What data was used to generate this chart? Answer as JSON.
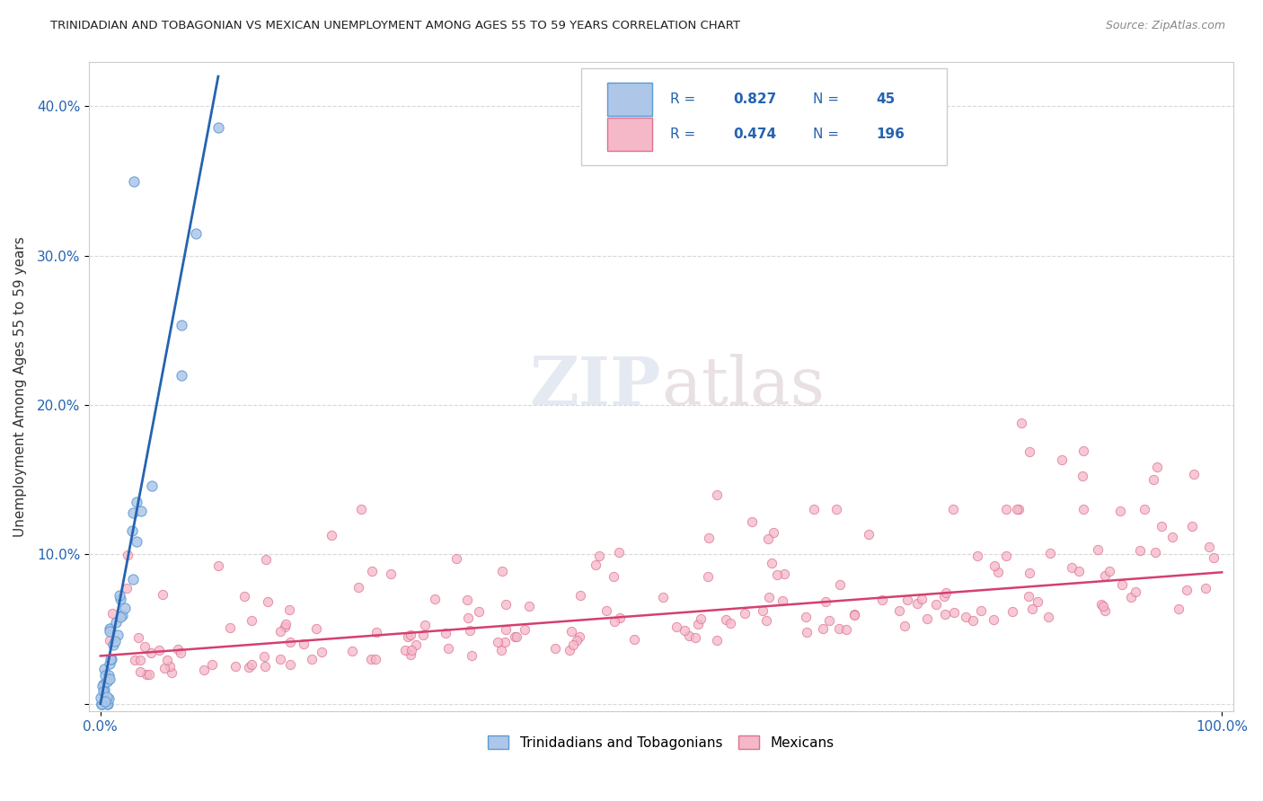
{
  "title": "TRINIDADIAN AND TOBAGONIAN VS MEXICAN UNEMPLOYMENT AMONG AGES 55 TO 59 YEARS CORRELATION CHART",
  "source": "Source: ZipAtlas.com",
  "ylabel": "Unemployment Among Ages 55 to 59 years",
  "legend_label_blue": "Trinidadians and Tobagonians",
  "legend_label_pink": "Mexicans",
  "R_blue": 0.827,
  "N_blue": 45,
  "R_pink": 0.474,
  "N_pink": 196,
  "watermark_zip": "ZIP",
  "watermark_atlas": "atlas",
  "blue_fill": "#aec6e8",
  "blue_edge": "#5b9bd5",
  "pink_fill": "#f4b8c8",
  "pink_edge": "#e07090",
  "blue_line_color": "#2563b0",
  "pink_line_color": "#d44070",
  "text_blue": "#2563b0",
  "grid_color": "#d8d8d8",
  "spine_color": "#cccccc",
  "title_color": "#222222",
  "source_color": "#888888",
  "ylabel_color": "#333333",
  "tick_color": "#2563b0",
  "background": "#ffffff",
  "legend_box_color": "#f0f0f0",
  "legend_box_edge": "#cccccc"
}
